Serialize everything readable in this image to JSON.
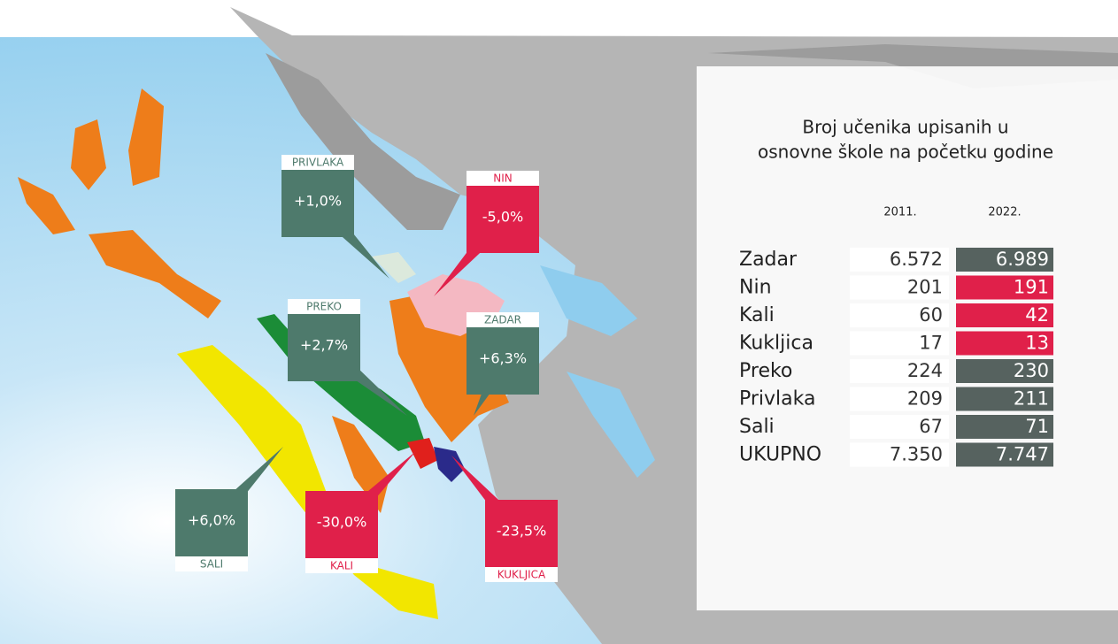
{
  "callouts": [
    {
      "name": "PRIVLAKA",
      "change": "+1,0%",
      "color": "#4e7a6c"
    },
    {
      "name": "NIN",
      "change": "-5,0%",
      "color": "#e0204a"
    },
    {
      "name": "PREKO",
      "change": "+2,7%",
      "color": "#4e7a6c"
    },
    {
      "name": "ZADAR",
      "change": "+6,3%",
      "color": "#4e7a6c"
    },
    {
      "name": "SALI",
      "change": "+6,0%",
      "color": "#4e7a6c"
    },
    {
      "name": "KALI",
      "change": "-30,0%",
      "color": "#e0204a"
    },
    {
      "name": "KUKLJICA",
      "change": "-23,5%",
      "color": "#e0204a"
    }
  ],
  "table": {
    "title": [
      "Broj učenika upisanih u",
      "osnovne škole na početku godine"
    ],
    "columns": [
      "2011.",
      "2022."
    ],
    "rows": [
      {
        "name": "Zadar",
        "y2011": "6.572",
        "y2022": "6.989",
        "color": "#56625f"
      },
      {
        "name": "Nin",
        "y2011": "201",
        "y2022": "191",
        "color": "#e0204a"
      },
      {
        "name": "Kali",
        "y2011": "60",
        "y2022": "42",
        "color": "#e0204a"
      },
      {
        "name": "Kukljica",
        "y2011": "17",
        "y2022": "13",
        "color": "#e0204a"
      },
      {
        "name": "Preko",
        "y2011": "224",
        "y2022": "230",
        "color": "#56625f"
      },
      {
        "name": "Privlaka",
        "y2011": "209",
        "y2022": "211",
        "color": "#56625f"
      },
      {
        "name": "Sali",
        "y2011": "67",
        "y2022": "71",
        "color": "#56625f"
      },
      {
        "name": "UKUPNO",
        "y2011": "7.350",
        "y2022": "7.747",
        "color": "#56625f"
      }
    ]
  }
}
